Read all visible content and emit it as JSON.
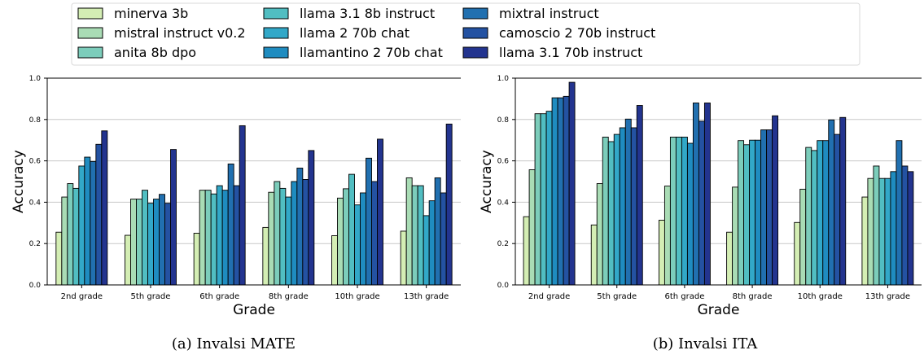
{
  "legend": {
    "placement": "top-center",
    "entries": [
      {
        "label": "minerva 3b",
        "color": "#d4eeb4"
      },
      {
        "label": "mistral instruct v0.2",
        "color": "#a9dcb5"
      },
      {
        "label": "anita 8b dpo",
        "color": "#7ccdbb"
      },
      {
        "label": "llama 3.1 8b instruct",
        "color": "#51bec2"
      },
      {
        "label": "llama 2 70b chat",
        "color": "#32a8c8"
      },
      {
        "label": "llamantino 2 70b chat",
        "color": "#1f8cc0"
      },
      {
        "label": "mixtral instruct",
        "color": "#2170b0"
      },
      {
        "label": "camoscio 2 70b instruct",
        "color": "#2452a2"
      },
      {
        "label": "llama 3.1 70b instruct",
        "color": "#23348f"
      }
    ]
  },
  "chart_data": [
    {
      "type": "bar",
      "caption": "(a) Invalsi MATE",
      "xlabel": "Grade",
      "ylabel": "Accuracy",
      "ylim": [
        0,
        1.0
      ],
      "yticks": [
        "0.0",
        "0.2",
        "0.4",
        "0.6",
        "0.8",
        "1.0"
      ],
      "grid": "horizontal",
      "categories": [
        "2nd grade",
        "5th grade",
        "6th grade",
        "8th grade",
        "10th grade",
        "13th grade"
      ],
      "series": [
        {
          "name": "minerva 3b",
          "values": [
            0.255,
            0.24,
            0.25,
            0.278,
            0.238,
            0.26
          ]
        },
        {
          "name": "mistral instruct v0.2",
          "values": [
            0.425,
            0.415,
            0.458,
            0.448,
            0.42,
            0.518
          ]
        },
        {
          "name": "anita 8b dpo",
          "values": [
            0.49,
            0.415,
            0.458,
            0.5,
            0.465,
            0.48
          ]
        },
        {
          "name": "llama 3.1 8b instruct",
          "values": [
            0.467,
            0.458,
            0.44,
            0.467,
            0.535,
            0.48
          ]
        },
        {
          "name": "llama 2 70b chat",
          "values": [
            0.575,
            0.395,
            0.48,
            0.425,
            0.387,
            0.335
          ]
        },
        {
          "name": "llamantino 2 70b chat",
          "values": [
            0.618,
            0.415,
            0.458,
            0.5,
            0.445,
            0.407
          ]
        },
        {
          "name": "mixtral instruct",
          "values": [
            0.597,
            0.438,
            0.585,
            0.565,
            0.613,
            0.518
          ]
        },
        {
          "name": "camoscio 2 70b instruct",
          "values": [
            0.68,
            0.395,
            0.48,
            0.51,
            0.5,
            0.445
          ]
        },
        {
          "name": "llama 3.1 70b instruct",
          "values": [
            0.745,
            0.655,
            0.77,
            0.65,
            0.705,
            0.778
          ]
        }
      ]
    },
    {
      "type": "bar",
      "caption": "(b) Invalsi ITA",
      "xlabel": "Grade",
      "ylabel": "Accuracy",
      "ylim": [
        0,
        1.0
      ],
      "yticks": [
        "0.0",
        "0.2",
        "0.4",
        "0.6",
        "0.8",
        "1.0"
      ],
      "grid": "horizontal",
      "categories": [
        "2nd grade",
        "5th grade",
        "6th grade",
        "8th grade",
        "10th grade",
        "13th grade"
      ],
      "series": [
        {
          "name": "minerva 3b",
          "values": [
            0.33,
            0.29,
            0.313,
            0.255,
            0.302,
            0.425
          ]
        },
        {
          "name": "mistral instruct v0.2",
          "values": [
            0.557,
            0.49,
            0.478,
            0.473,
            0.463,
            0.515
          ]
        },
        {
          "name": "anita 8b dpo",
          "values": [
            0.828,
            0.715,
            0.715,
            0.698,
            0.665,
            0.575
          ]
        },
        {
          "name": "llama 3.1 8b instruct",
          "values": [
            0.828,
            0.693,
            0.715,
            0.678,
            0.65,
            0.515
          ]
        },
        {
          "name": "llama 2 70b chat",
          "values": [
            0.84,
            0.728,
            0.715,
            0.7,
            0.698,
            0.515
          ]
        },
        {
          "name": "llamantino 2 70b chat",
          "values": [
            0.905,
            0.76,
            0.685,
            0.7,
            0.698,
            0.548
          ]
        },
        {
          "name": "mixtral instruct",
          "values": [
            0.905,
            0.802,
            0.88,
            0.75,
            0.798,
            0.698
          ]
        },
        {
          "name": "camoscio 2 70b instruct",
          "values": [
            0.912,
            0.76,
            0.792,
            0.75,
            0.728,
            0.575
          ]
        },
        {
          "name": "llama 3.1 70b instruct",
          "values": [
            0.98,
            0.868,
            0.88,
            0.818,
            0.81,
            0.548
          ]
        }
      ]
    }
  ]
}
